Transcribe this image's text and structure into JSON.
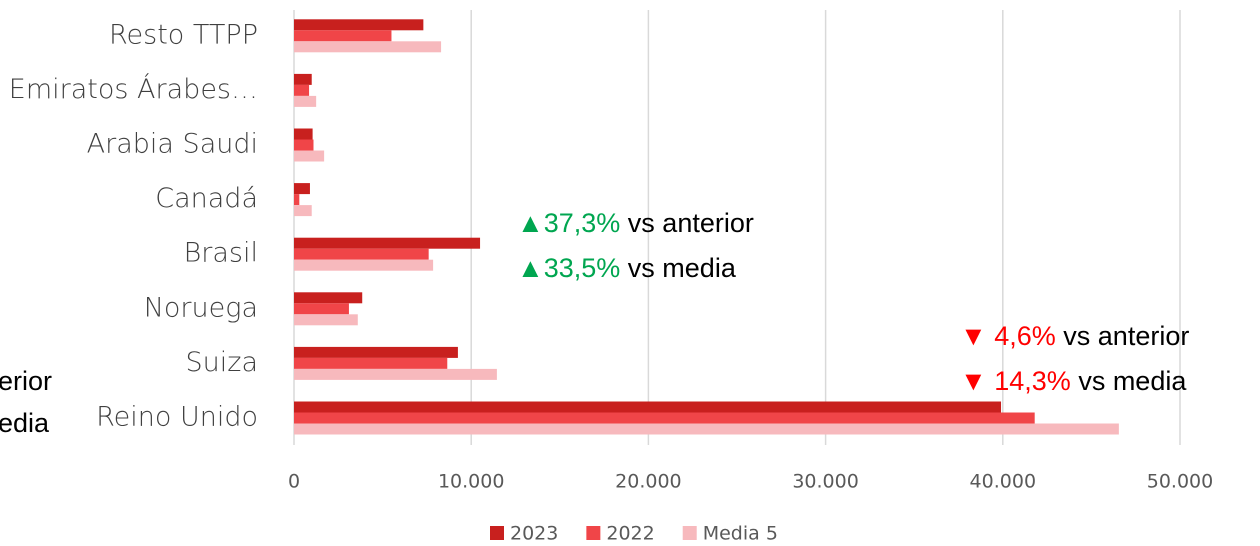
{
  "chart_data": {
    "type": "bar",
    "orientation": "horizontal",
    "categories": [
      "Reino Unido",
      "Suiza",
      "Noruega",
      "Brasil",
      "Canadá",
      "Arabia Saudi",
      "Emiratos Árabes…",
      "Resto TTPP"
    ],
    "series": [
      {
        "name": "2023",
        "color": "#c8201e",
        "values": [
          39900,
          9250,
          3850,
          10500,
          900,
          1050,
          1000,
          7300
        ]
      },
      {
        "name": "2022",
        "color": "#f04548",
        "values": [
          41800,
          8650,
          3100,
          7600,
          300,
          1100,
          850,
          5500
        ]
      },
      {
        "name": "Media 5",
        "color": "#f7b9bd",
        "values": [
          46550,
          11450,
          3600,
          7850,
          1000,
          1700,
          1250,
          8300
        ]
      }
    ],
    "xlim": [
      0,
      50000
    ],
    "xticks": [
      0,
      {
        "value": 10000,
        "label": "10.000"
      },
      {
        "value": 20000,
        "label": "20.000"
      },
      {
        "value": 30000,
        "label": "30.000"
      },
      {
        "value": 40000,
        "label": "40.000"
      },
      {
        "value": 50000,
        "label": "50.000"
      }
    ],
    "grid": true,
    "legend": "bottom",
    "annotations": [
      {
        "highlight": "▲37,3%",
        "text": "vs anterior",
        "color": "#00a650"
      },
      {
        "highlight": "▲33,5%",
        "text": "vs media",
        "color": "#00a650"
      },
      {
        "highlight": "▼ 4,6%",
        "text": "vs anterior",
        "color": "#ff0000"
      },
      {
        "highlight": "▼ 14,3%",
        "text": "vs media",
        "color": "#ff0000"
      },
      {
        "text": "erior"
      },
      {
        "text": "edia"
      }
    ]
  }
}
